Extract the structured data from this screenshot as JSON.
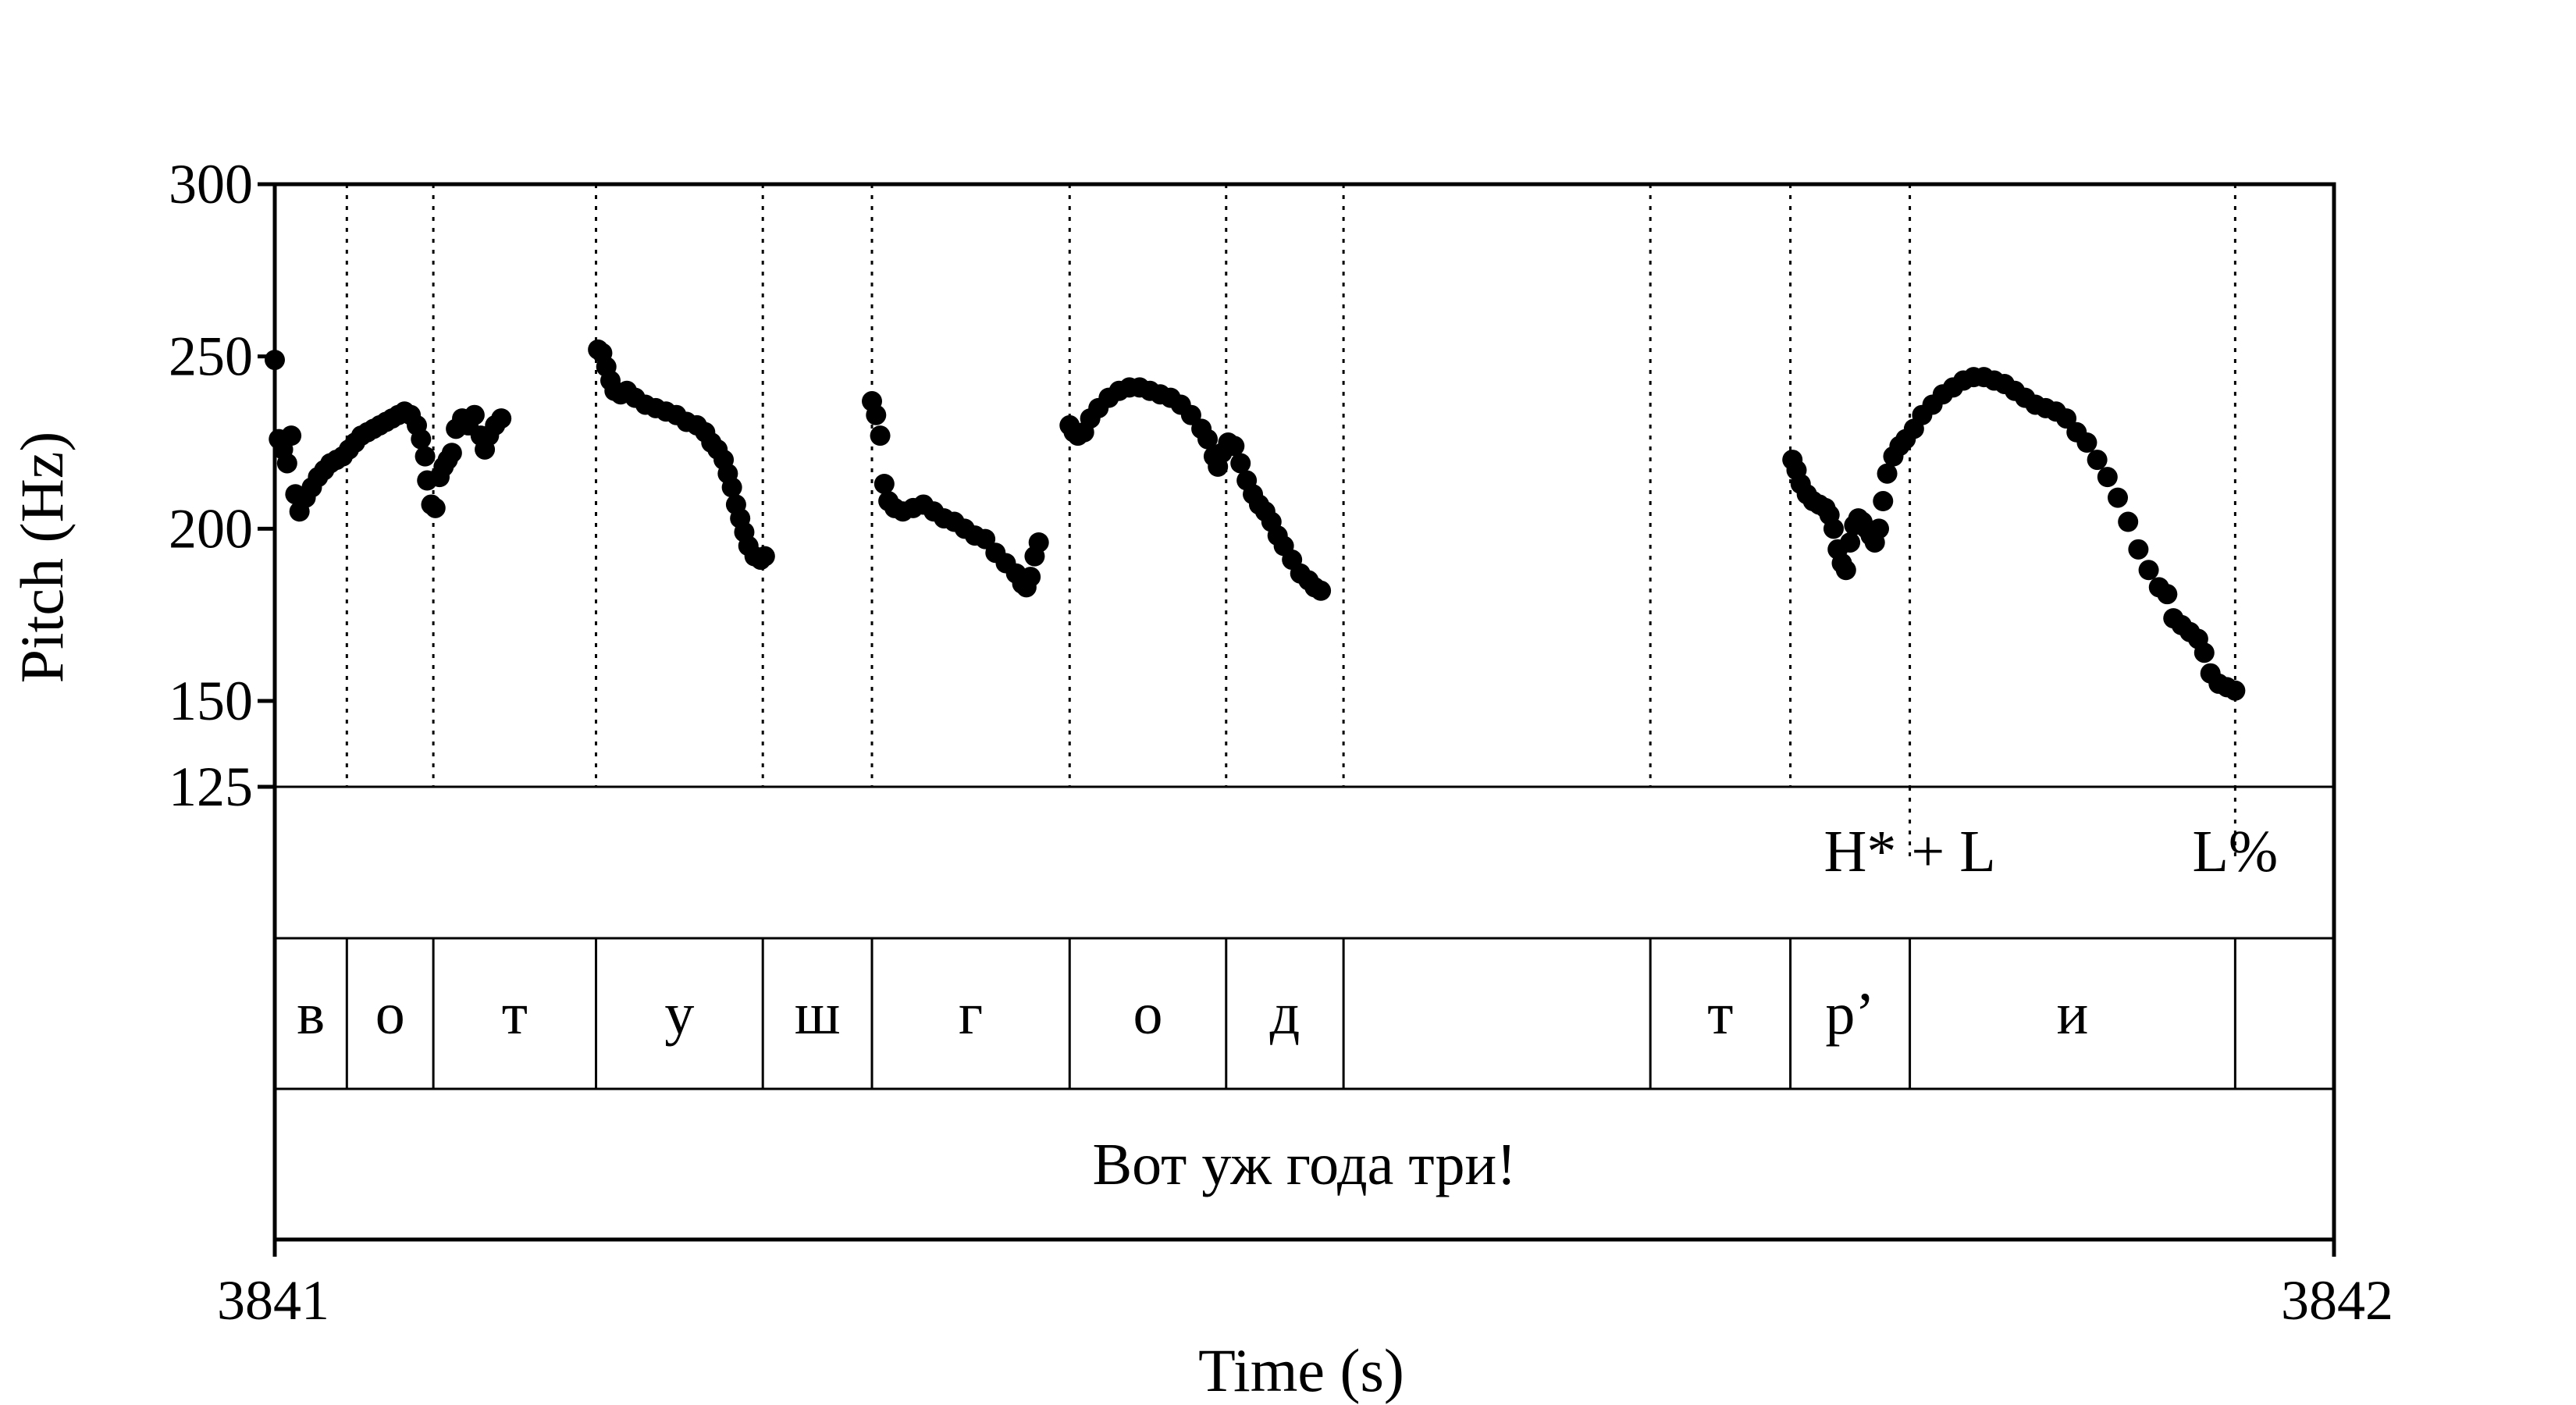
{
  "chart_data": {
    "type": "scatter",
    "ylabel": "Pitch (Hz)",
    "xlabel": "Time (s)",
    "xlim": [
      3841,
      3842
    ],
    "ylim": [
      125,
      300
    ],
    "x_tick_labels": [
      "3841",
      "3842"
    ],
    "y_ticks": [
      125,
      150,
      200,
      250,
      300
    ],
    "y_tick_labels": [
      "125",
      "150",
      "200",
      "250",
      "300"
    ],
    "grid": false,
    "boundaries": [
      3841.035,
      3841.077,
      3841.156,
      3841.237,
      3841.29,
      3841.386,
      3841.462,
      3841.519,
      3841.668,
      3841.736,
      3841.794,
      3841.952
    ],
    "tones": [
      {
        "time": 3841.794,
        "label": "H* + L"
      },
      {
        "time": 3841.952,
        "label": "L%"
      }
    ],
    "phones": [
      {
        "start": 3841.0,
        "end": 3841.035,
        "label": "в"
      },
      {
        "start": 3841.035,
        "end": 3841.077,
        "label": "о"
      },
      {
        "start": 3841.077,
        "end": 3841.156,
        "label": "т"
      },
      {
        "start": 3841.156,
        "end": 3841.237,
        "label": "у"
      },
      {
        "start": 3841.237,
        "end": 3841.29,
        "label": "ш"
      },
      {
        "start": 3841.29,
        "end": 3841.386,
        "label": "г"
      },
      {
        "start": 3841.386,
        "end": 3841.462,
        "label": "о"
      },
      {
        "start": 3841.462,
        "end": 3841.519,
        "label": "д"
      },
      {
        "start": 3841.519,
        "end": 3841.668,
        "label": ""
      },
      {
        "start": 3841.668,
        "end": 3841.736,
        "label": "т"
      },
      {
        "start": 3841.736,
        "end": 3841.794,
        "label": "р’"
      },
      {
        "start": 3841.794,
        "end": 3841.952,
        "label": "и"
      },
      {
        "start": 3841.952,
        "end": 3842.0,
        "label": ""
      }
    ],
    "sentence": "Вот уж года три!",
    "series": [
      {
        "points": [
          [
            3841.0,
            249
          ],
          [
            3841.002,
            226
          ],
          [
            3841.004,
            223
          ],
          [
            3841.006,
            219
          ],
          [
            3841.008,
            227
          ],
          [
            3841.01,
            210
          ],
          [
            3841.012,
            205
          ],
          [
            3841.015,
            209
          ],
          [
            3841.018,
            212
          ],
          [
            3841.021,
            215
          ],
          [
            3841.024,
            217
          ],
          [
            3841.027,
            219
          ],
          [
            3841.03,
            220
          ],
          [
            3841.033,
            221
          ],
          [
            3841.036,
            223
          ],
          [
            3841.039,
            225
          ],
          [
            3841.042,
            227
          ],
          [
            3841.045,
            228
          ],
          [
            3841.048,
            229
          ],
          [
            3841.051,
            230
          ],
          [
            3841.054,
            231
          ],
          [
            3841.057,
            232
          ],
          [
            3841.06,
            233
          ],
          [
            3841.063,
            234
          ],
          [
            3841.066,
            233
          ],
          [
            3841.069,
            230
          ],
          [
            3841.071,
            226
          ],
          [
            3841.073,
            221
          ],
          [
            3841.074,
            214
          ],
          [
            3841.076,
            207
          ],
          [
            3841.078,
            206
          ],
          [
            3841.08,
            215
          ],
          [
            3841.082,
            218
          ],
          [
            3841.084,
            220
          ],
          [
            3841.086,
            222
          ],
          [
            3841.088,
            229
          ],
          [
            3841.091,
            232
          ],
          [
            3841.094,
            230
          ],
          [
            3841.097,
            233
          ],
          [
            3841.1,
            227
          ],
          [
            3841.102,
            223
          ],
          [
            3841.104,
            227
          ],
          [
            3841.107,
            230
          ],
          [
            3841.11,
            232
          ]
        ]
      },
      {
        "points": [
          [
            3841.157,
            252
          ],
          [
            3841.159,
            251
          ],
          [
            3841.161,
            247
          ],
          [
            3841.163,
            243
          ],
          [
            3841.165,
            240
          ],
          [
            3841.168,
            239
          ],
          [
            3841.171,
            240
          ],
          [
            3841.175,
            238
          ],
          [
            3841.18,
            236
          ],
          [
            3841.185,
            235
          ],
          [
            3841.19,
            234
          ],
          [
            3841.195,
            233
          ],
          [
            3841.2,
            231
          ],
          [
            3841.205,
            230
          ],
          [
            3841.209,
            228
          ],
          [
            3841.212,
            225
          ],
          [
            3841.215,
            223
          ],
          [
            3841.218,
            220
          ],
          [
            3841.22,
            216
          ],
          [
            3841.222,
            212
          ],
          [
            3841.224,
            207
          ],
          [
            3841.226,
            203
          ],
          [
            3841.228,
            199
          ],
          [
            3841.23,
            195
          ],
          [
            3841.233,
            192
          ],
          [
            3841.236,
            191
          ],
          [
            3841.238,
            192
          ]
        ]
      },
      {
        "points": [
          [
            3841.29,
            237
          ],
          [
            3841.292,
            233
          ],
          [
            3841.294,
            227
          ],
          [
            3841.296,
            213
          ],
          [
            3841.298,
            208
          ],
          [
            3841.301,
            206
          ],
          [
            3841.305,
            205
          ],
          [
            3841.31,
            206
          ],
          [
            3841.315,
            207
          ],
          [
            3841.32,
            205
          ],
          [
            3841.325,
            203
          ],
          [
            3841.33,
            202
          ],
          [
            3841.335,
            200
          ],
          [
            3841.34,
            198
          ],
          [
            3841.345,
            197
          ],
          [
            3841.35,
            193
          ],
          [
            3841.355,
            190
          ],
          [
            3841.36,
            187
          ],
          [
            3841.363,
            184
          ],
          [
            3841.365,
            183
          ],
          [
            3841.367,
            186
          ],
          [
            3841.369,
            192
          ],
          [
            3841.371,
            196
          ]
        ]
      },
      {
        "points": [
          [
            3841.386,
            230
          ],
          [
            3841.388,
            228
          ],
          [
            3841.39,
            227
          ],
          [
            3841.393,
            228
          ],
          [
            3841.396,
            232
          ],
          [
            3841.4,
            235
          ],
          [
            3841.405,
            238
          ],
          [
            3841.41,
            240
          ],
          [
            3841.415,
            241
          ],
          [
            3841.42,
            241
          ],
          [
            3841.425,
            240
          ],
          [
            3841.43,
            239
          ],
          [
            3841.435,
            238
          ],
          [
            3841.44,
            236
          ],
          [
            3841.445,
            233
          ],
          [
            3841.45,
            229
          ],
          [
            3841.453,
            226
          ],
          [
            3841.456,
            221
          ],
          [
            3841.458,
            218
          ],
          [
            3841.46,
            222
          ],
          [
            3841.463,
            225
          ],
          [
            3841.466,
            224
          ],
          [
            3841.469,
            219
          ],
          [
            3841.472,
            214
          ],
          [
            3841.475,
            210
          ],
          [
            3841.478,
            207
          ],
          [
            3841.481,
            205
          ],
          [
            3841.484,
            202
          ],
          [
            3841.487,
            198
          ],
          [
            3841.49,
            195
          ],
          [
            3841.494,
            191
          ],
          [
            3841.498,
            187
          ],
          [
            3841.502,
            185
          ],
          [
            3841.505,
            183
          ],
          [
            3841.508,
            182
          ]
        ]
      },
      {
        "points": [
          [
            3841.737,
            220
          ],
          [
            3841.739,
            217
          ],
          [
            3841.741,
            213
          ],
          [
            3841.744,
            210
          ],
          [
            3841.747,
            208
          ],
          [
            3841.75,
            207
          ],
          [
            3841.753,
            206
          ],
          [
            3841.755,
            204
          ],
          [
            3841.757,
            200
          ],
          [
            3841.759,
            194
          ],
          [
            3841.761,
            190
          ],
          [
            3841.763,
            188
          ],
          [
            3841.765,
            196
          ],
          [
            3841.767,
            201
          ],
          [
            3841.769,
            203
          ],
          [
            3841.771,
            202
          ],
          [
            3841.773,
            200
          ],
          [
            3841.775,
            198
          ],
          [
            3841.777,
            196
          ],
          [
            3841.779,
            200
          ],
          [
            3841.781,
            208
          ],
          [
            3841.783,
            216
          ],
          [
            3841.786,
            221
          ],
          [
            3841.789,
            224
          ],
          [
            3841.792,
            226
          ],
          [
            3841.796,
            229
          ],
          [
            3841.8,
            233
          ],
          [
            3841.805,
            236
          ],
          [
            3841.81,
            239
          ],
          [
            3841.815,
            241
          ],
          [
            3841.82,
            243
          ],
          [
            3841.825,
            244
          ],
          [
            3841.83,
            244
          ],
          [
            3841.835,
            243
          ],
          [
            3841.84,
            242
          ],
          [
            3841.845,
            240
          ],
          [
            3841.85,
            238
          ],
          [
            3841.855,
            236
          ],
          [
            3841.86,
            235
          ],
          [
            3841.865,
            234
          ],
          [
            3841.87,
            232
          ],
          [
            3841.875,
            228
          ],
          [
            3841.88,
            225
          ],
          [
            3841.885,
            220
          ],
          [
            3841.89,
            215
          ],
          [
            3841.895,
            209
          ],
          [
            3841.9,
            202
          ],
          [
            3841.905,
            194
          ],
          [
            3841.91,
            188
          ],
          [
            3841.915,
            183
          ],
          [
            3841.919,
            181
          ],
          [
            3841.922,
            174
          ],
          [
            3841.926,
            172
          ],
          [
            3841.93,
            170
          ],
          [
            3841.934,
            168
          ],
          [
            3841.937,
            164
          ],
          [
            3841.94,
            158
          ],
          [
            3841.944,
            155
          ],
          [
            3841.948,
            154
          ],
          [
            3841.952,
            153
          ]
        ]
      }
    ]
  }
}
